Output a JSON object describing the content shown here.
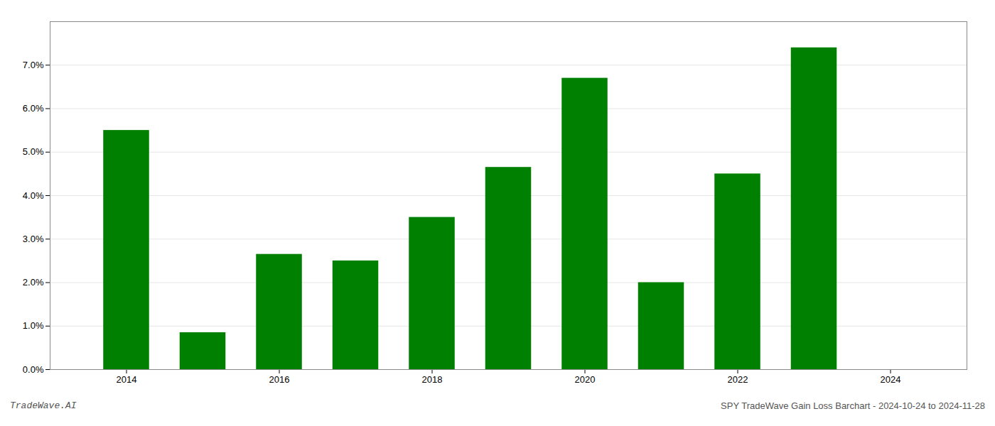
{
  "chart_data": {
    "type": "bar",
    "x": [
      2014,
      2015,
      2016,
      2017,
      2018,
      2019,
      2020,
      2021,
      2022,
      2023
    ],
    "values": [
      0.055,
      0.0085,
      0.0265,
      0.025,
      0.035,
      0.0465,
      0.067,
      0.02,
      0.045,
      0.074
    ],
    "color": "#008000",
    "xlim": [
      2013.0,
      2025.0
    ],
    "xticks": [
      2014,
      2016,
      2018,
      2020,
      2022,
      2024
    ],
    "ylim": [
      0.0,
      0.08
    ],
    "yticks": [
      {
        "value": 0.0,
        "label": "0.0%"
      },
      {
        "value": 0.01,
        "label": "1.0%"
      },
      {
        "value": 0.02,
        "label": "2.0%"
      },
      {
        "value": 0.03,
        "label": "3.0%"
      },
      {
        "value": 0.04,
        "label": "4.0%"
      },
      {
        "value": 0.05,
        "label": "5.0%"
      },
      {
        "value": 0.06,
        "label": "6.0%"
      },
      {
        "value": 0.07,
        "label": "7.0%"
      }
    ],
    "grid": true,
    "annotations": [
      "TradeWave.AI",
      "SPY TradeWave Gain Loss Barchart - 2024-10-24 to 2024-11-28"
    ]
  }
}
